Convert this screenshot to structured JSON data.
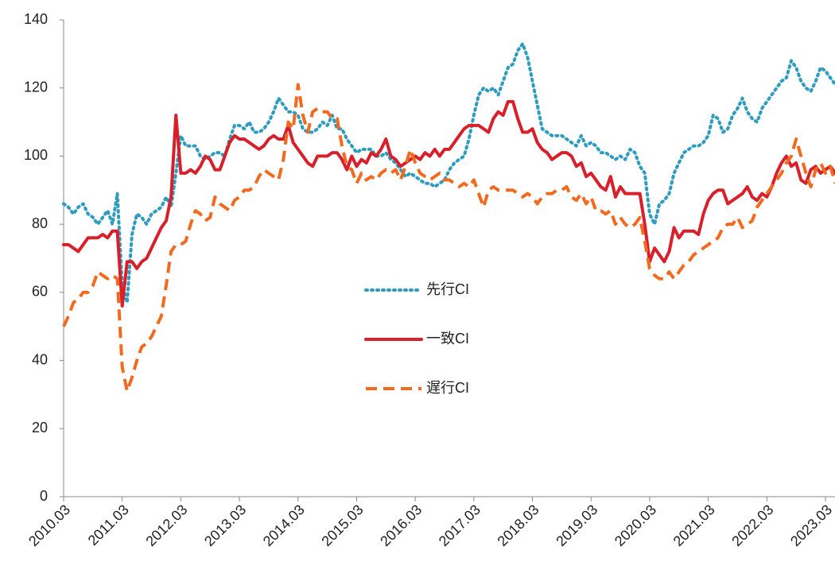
{
  "chart_data": {
    "type": "line",
    "categories": [
      "2010.03",
      null,
      null,
      null,
      null,
      null,
      null,
      null,
      null,
      null,
      null,
      null,
      "2011.03",
      null,
      null,
      null,
      null,
      null,
      null,
      null,
      null,
      null,
      null,
      null,
      "2012.03",
      null,
      null,
      null,
      null,
      null,
      null,
      null,
      null,
      null,
      null,
      null,
      "2013.03",
      null,
      null,
      null,
      null,
      null,
      null,
      null,
      null,
      null,
      null,
      null,
      "2014.03",
      null,
      null,
      null,
      null,
      null,
      null,
      null,
      null,
      null,
      null,
      null,
      "2015.03",
      null,
      null,
      null,
      null,
      null,
      null,
      null,
      null,
      null,
      null,
      null,
      "2016.03",
      null,
      null,
      null,
      null,
      null,
      null,
      null,
      null,
      null,
      null,
      null,
      "2017.03",
      null,
      null,
      null,
      null,
      null,
      null,
      null,
      null,
      null,
      null,
      null,
      "2018.03",
      null,
      null,
      null,
      null,
      null,
      null,
      null,
      null,
      null,
      null,
      null,
      "2019.03",
      null,
      null,
      null,
      null,
      null,
      null,
      null,
      null,
      null,
      null,
      null,
      "2020.03",
      null,
      null,
      null,
      null,
      null,
      null,
      null,
      null,
      null,
      null,
      null,
      "2021.03",
      null,
      null,
      null,
      null,
      null,
      null,
      null,
      null,
      null,
      null,
      null,
      "2022.03",
      null,
      null,
      null,
      null,
      null,
      null,
      null,
      null,
      null,
      null,
      null,
      "2023.03",
      null,
      null
    ],
    "series": [
      {
        "name": "先行CI",
        "color": "#2e9cc0",
        "dash": "dotted",
        "values": [
          86,
          85,
          83,
          85,
          86,
          83,
          82,
          80,
          82,
          84,
          80,
          89,
          62,
          57,
          77,
          83,
          82,
          80,
          83,
          84,
          85,
          88,
          85,
          95,
          106,
          103,
          103,
          103,
          100,
          99,
          100,
          101,
          101,
          100,
          105,
          109,
          109,
          108,
          110,
          107,
          107,
          108,
          110,
          113,
          117,
          115,
          113,
          113,
          112,
          108,
          107,
          107,
          108,
          110,
          109,
          112,
          108,
          108,
          105,
          103,
          101,
          102,
          102,
          102,
          100,
          100,
          101,
          99,
          98,
          96,
          94,
          95,
          94,
          93,
          92,
          92,
          91,
          92,
          93,
          96,
          98,
          99,
          100,
          105,
          112,
          118,
          120,
          119,
          120,
          118,
          122,
          126,
          127,
          131,
          133,
          129,
          122,
          115,
          108,
          107,
          106,
          106,
          106,
          105,
          104,
          103,
          106,
          103,
          104,
          103,
          101,
          101,
          100,
          99,
          100,
          99,
          102,
          101,
          97,
          95,
          83,
          80,
          86,
          87,
          89,
          95,
          98,
          101,
          102,
          103,
          103,
          104,
          106,
          112,
          111,
          107,
          108,
          112,
          114,
          117,
          113,
          111,
          110,
          114,
          116,
          118,
          120,
          122,
          123,
          128,
          126,
          122,
          120,
          119,
          122,
          126,
          125,
          123,
          121
        ]
      },
      {
        "name": "一致CI",
        "color": "#d7202a",
        "dash": "solid",
        "values": [
          74,
          74,
          73,
          72,
          74,
          76,
          76,
          76,
          77,
          76,
          78,
          78,
          56,
          69,
          69,
          67,
          69,
          70,
          73,
          76,
          79,
          81,
          88,
          112,
          95,
          95,
          96,
          95,
          97,
          100,
          99,
          96,
          96,
          100,
          104,
          106,
          105,
          105,
          104,
          103,
          102,
          103,
          105,
          106,
          105,
          105,
          109,
          104,
          102,
          100,
          98,
          97,
          100,
          100,
          100,
          101,
          101,
          99,
          96,
          100,
          97,
          99,
          98,
          101,
          100,
          102,
          105,
          100,
          99,
          97,
          98,
          99,
          100,
          99,
          101,
          100,
          102,
          100,
          102,
          102,
          104,
          106,
          108,
          109,
          109,
          109,
          108,
          107,
          111,
          113,
          112,
          116,
          116,
          111,
          107,
          107,
          108,
          104,
          102,
          101,
          99,
          100,
          101,
          101,
          100,
          97,
          98,
          94,
          95,
          93,
          91,
          90,
          94,
          88,
          91,
          89,
          89,
          89,
          89,
          80,
          69,
          73,
          71,
          69,
          72,
          79,
          76,
          78,
          78,
          78,
          77,
          83,
          87,
          89,
          90,
          90,
          86,
          87,
          88,
          89,
          91,
          88,
          87,
          89,
          88,
          91,
          95,
          98,
          100,
          97,
          98,
          93,
          92,
          96,
          97,
          95,
          96,
          97,
          95
        ]
      },
      {
        "name": "遅行CI",
        "color": "#f26a1f",
        "dash": "dashed",
        "values": [
          50,
          53,
          57,
          58,
          60,
          60,
          62,
          66,
          65,
          64,
          65,
          64,
          38,
          31,
          35,
          40,
          44,
          45,
          47,
          50,
          53,
          62,
          72,
          74,
          74,
          75,
          80,
          84,
          83,
          81,
          82,
          88,
          86,
          85,
          84,
          87,
          88,
          90,
          90,
          91,
          94,
          96,
          95,
          94,
          93,
          99,
          110,
          108,
          121,
          112,
          107,
          113,
          114,
          113,
          113,
          111,
          111,
          103,
          97,
          96,
          92,
          95,
          93,
          94,
          93,
          95,
          96,
          95,
          96,
          93,
          97,
          102,
          98,
          95,
          94,
          93,
          94,
          95,
          93,
          93,
          92,
          91,
          92,
          91,
          93,
          89,
          85,
          90,
          91,
          90,
          90,
          90,
          90,
          89,
          88,
          89,
          88,
          86,
          88,
          89,
          89,
          90,
          90,
          91,
          88,
          87,
          89,
          86,
          88,
          84,
          84,
          83,
          84,
          80,
          82,
          80,
          79,
          80,
          82,
          75,
          67,
          65,
          64,
          64,
          66,
          64,
          66,
          68,
          69,
          71,
          72,
          73,
          74,
          75,
          76,
          79,
          80,
          80,
          82,
          79,
          80,
          81,
          85,
          87,
          89,
          91,
          93,
          95,
          98,
          100,
          105,
          100,
          95,
          91,
          96,
          98,
          95,
          97,
          92
        ]
      }
    ],
    "ylim": [
      0,
      140
    ],
    "yticks": [
      0,
      20,
      40,
      60,
      80,
      100,
      120,
      140
    ],
    "grid": false,
    "legend": "center"
  }
}
